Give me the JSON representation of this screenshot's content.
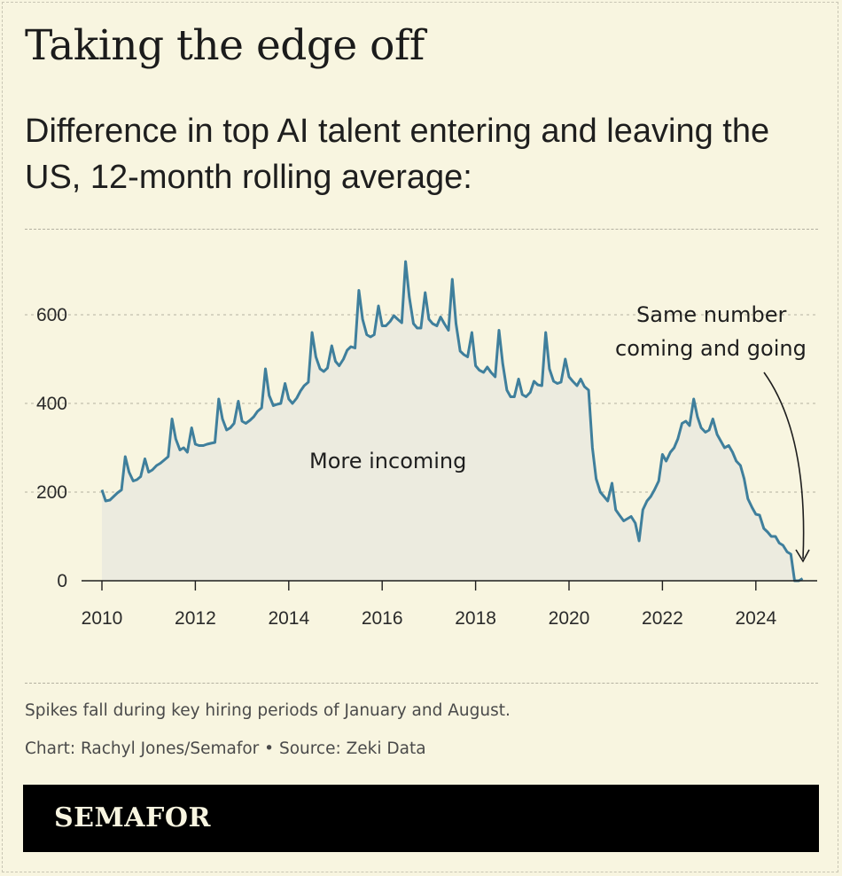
{
  "headline": "Taking the edge off",
  "subtitle": "Difference in top AI talent entering and leaving the US, 12-month rolling average:",
  "annotations": {
    "area_label": "More incoming",
    "callout_line1": "Same number",
    "callout_line2": "coming and going"
  },
  "note": "Spikes fall during key hiring periods of January and August.",
  "credit": "Chart: Rachyl Jones/Semafor • Source: Zeki Data",
  "brand": "SEMAFOR",
  "colors": {
    "background": "#f8f5e0",
    "line": "#3f7f9c",
    "area": "#ecebdf",
    "footer": "#000000"
  },
  "chart_data": {
    "type": "area",
    "title": "",
    "xlabel": "",
    "ylabel": "",
    "xlim": [
      2010,
      2025.2
    ],
    "ylim": [
      0,
      720
    ],
    "x_ticks": [
      2010,
      2012,
      2014,
      2016,
      2018,
      2020,
      2022,
      2024
    ],
    "y_ticks": [
      0,
      200,
      400,
      600
    ],
    "grid": "horizontal dashed",
    "series": [
      {
        "x": [
          2010.0,
          2010.08,
          2010.17,
          2010.25,
          2010.33,
          2010.42,
          2010.5,
          2010.58,
          2010.67,
          2010.75,
          2010.83,
          2010.92,
          2011.0,
          2011.08,
          2011.17,
          2011.25,
          2011.33,
          2011.42,
          2011.5,
          2011.58,
          2011.67,
          2011.75,
          2011.83,
          2011.92,
          2012.0,
          2012.08,
          2012.17,
          2012.25,
          2012.33,
          2012.42,
          2012.5,
          2012.58,
          2012.67,
          2012.75,
          2012.83,
          2012.92,
          2013.0,
          2013.08,
          2013.17,
          2013.25,
          2013.33,
          2013.42,
          2013.5,
          2013.58,
          2013.67,
          2013.75,
          2013.83,
          2013.92,
          2014.0,
          2014.08,
          2014.17,
          2014.25,
          2014.33,
          2014.42,
          2014.5,
          2014.58,
          2014.67,
          2014.75,
          2014.83,
          2014.92,
          2015.0,
          2015.08,
          2015.17,
          2015.25,
          2015.33,
          2015.42,
          2015.5,
          2015.58,
          2015.67,
          2015.75,
          2015.83,
          2015.92,
          2016.0,
          2016.08,
          2016.17,
          2016.25,
          2016.33,
          2016.42,
          2016.5,
          2016.58,
          2016.67,
          2016.75,
          2016.83,
          2016.92,
          2017.0,
          2017.08,
          2017.17,
          2017.25,
          2017.33,
          2017.42,
          2017.5,
          2017.58,
          2017.67,
          2017.75,
          2017.83,
          2017.92,
          2018.0,
          2018.08,
          2018.17,
          2018.25,
          2018.33,
          2018.42,
          2018.5,
          2018.58,
          2018.67,
          2018.75,
          2018.83,
          2018.92,
          2019.0,
          2019.08,
          2019.17,
          2019.25,
          2019.33,
          2019.42,
          2019.5,
          2019.58,
          2019.67,
          2019.75,
          2019.83,
          2019.92,
          2020.0,
          2020.08,
          2020.17,
          2020.25,
          2020.33,
          2020.42,
          2020.5,
          2020.58,
          2020.67,
          2020.75,
          2020.83,
          2020.92,
          2021.0,
          2021.08,
          2021.17,
          2021.25,
          2021.33,
          2021.42,
          2021.5,
          2021.58,
          2021.67,
          2021.75,
          2021.83,
          2021.92,
          2022.0,
          2022.08,
          2022.17,
          2022.25,
          2022.33,
          2022.42,
          2022.5,
          2022.58,
          2022.67,
          2022.75,
          2022.83,
          2022.92,
          2023.0,
          2023.08,
          2023.17,
          2023.25,
          2023.33,
          2023.42,
          2023.5,
          2023.58,
          2023.67,
          2023.75,
          2023.83,
          2023.92,
          2024.0,
          2024.08,
          2024.17,
          2024.25,
          2024.33,
          2024.42,
          2024.5,
          2024.58,
          2024.67,
          2024.75,
          2024.83,
          2024.92,
          2025.0
        ],
        "values": [
          205,
          180,
          182,
          190,
          198,
          205,
          280,
          245,
          225,
          228,
          235,
          275,
          245,
          250,
          260,
          265,
          272,
          280,
          365,
          320,
          295,
          300,
          290,
          345,
          308,
          305,
          305,
          308,
          310,
          312,
          410,
          365,
          340,
          345,
          355,
          405,
          360,
          355,
          362,
          370,
          382,
          390,
          478,
          418,
          395,
          398,
          400,
          445,
          410,
          400,
          412,
          428,
          440,
          448,
          560,
          505,
          478,
          472,
          480,
          530,
          495,
          485,
          500,
          520,
          528,
          525,
          655,
          590,
          555,
          550,
          555,
          620,
          575,
          575,
          585,
          598,
          590,
          582,
          720,
          640,
          580,
          570,
          570,
          650,
          590,
          580,
          575,
          595,
          580,
          565,
          680,
          580,
          518,
          510,
          505,
          560,
          485,
          475,
          470,
          482,
          470,
          460,
          565,
          490,
          430,
          415,
          415,
          455,
          420,
          415,
          425,
          450,
          442,
          440,
          560,
          478,
          450,
          445,
          448,
          500,
          460,
          450,
          440,
          455,
          438,
          430,
          300,
          230,
          200,
          190,
          180,
          220,
          160,
          148,
          135,
          140,
          145,
          130,
          90,
          160,
          180,
          190,
          205,
          225,
          285,
          270,
          290,
          300,
          320,
          355,
          360,
          350,
          410,
          370,
          345,
          335,
          340,
          365,
          330,
          315,
          300,
          305,
          290,
          270,
          260,
          230,
          185,
          165,
          150,
          148,
          118,
          110,
          100,
          100,
          85,
          80,
          65,
          60,
          0,
          0,
          5
        ]
      }
    ]
  }
}
